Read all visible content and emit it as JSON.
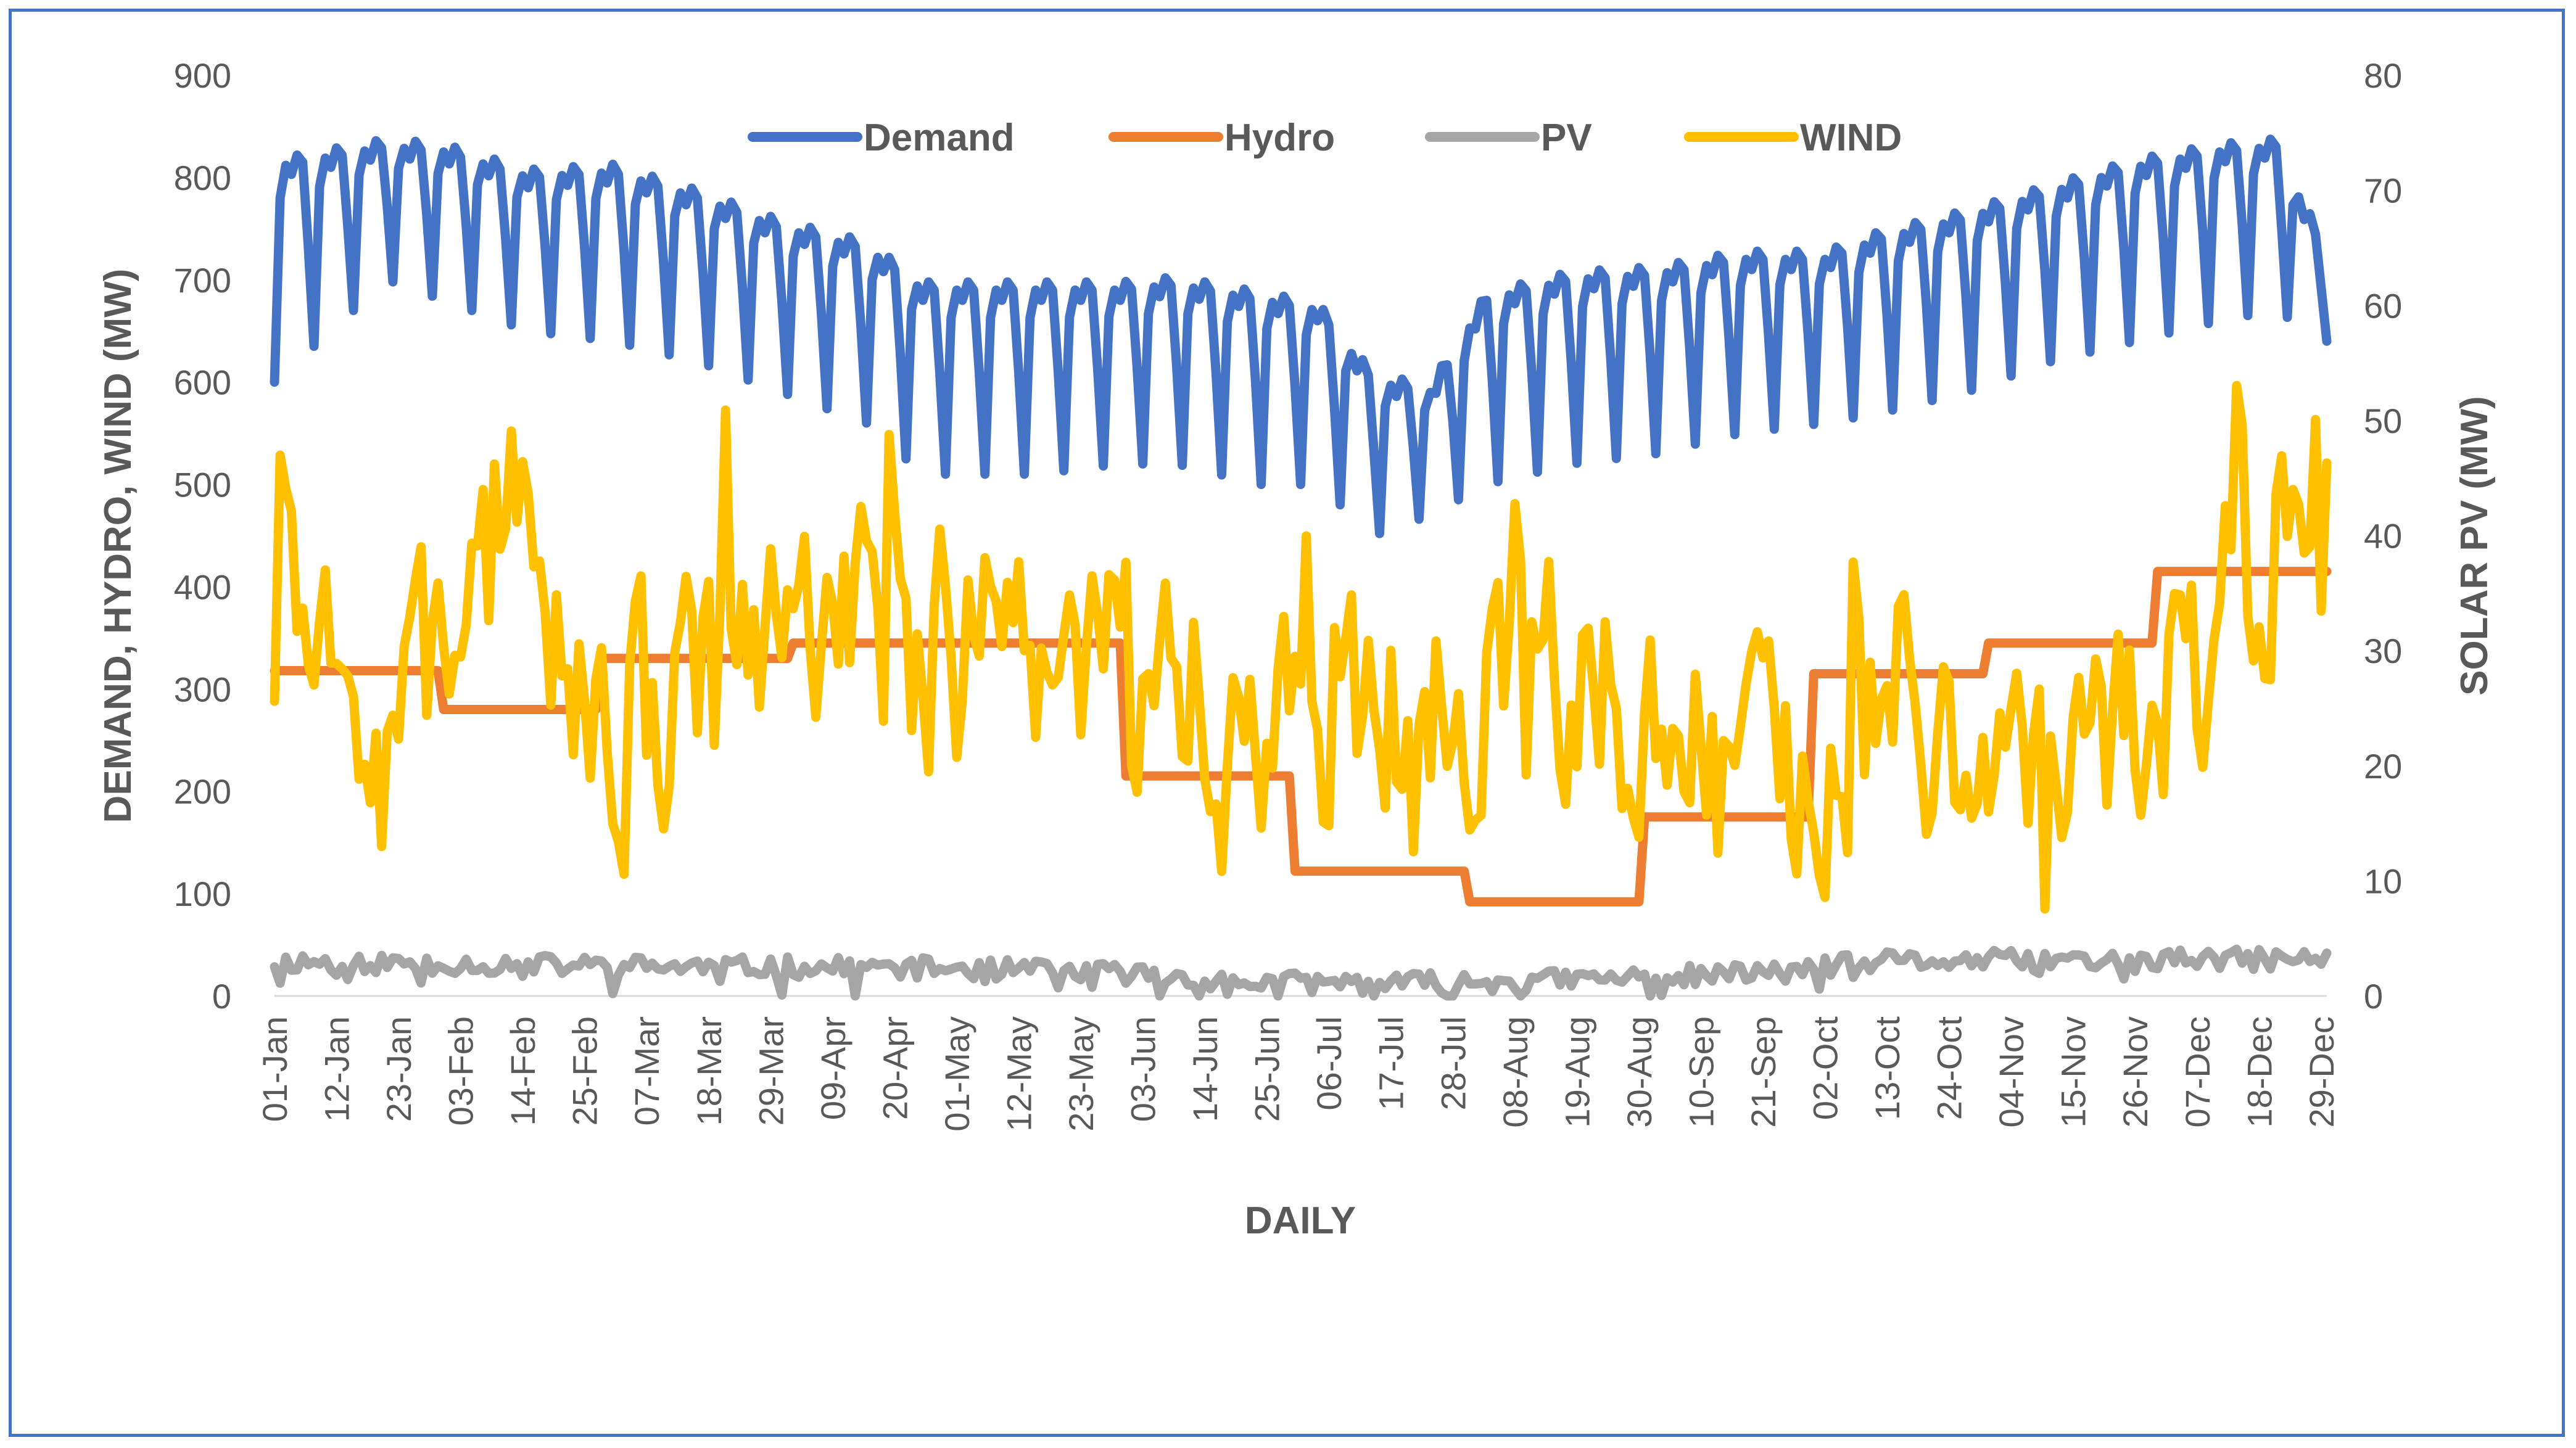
{
  "chart_data": {
    "type": "line",
    "title": "",
    "xlabel": "DAILY",
    "ylabel": "DEMAND, HYDRO, WIND (MW)",
    "y2label": "SOLAR PV (MW)",
    "ylim": [
      0,
      900
    ],
    "y2lim": [
      0,
      80
    ],
    "yticks": [
      "0",
      "100",
      "200",
      "300",
      "400",
      "500",
      "600",
      "700",
      "800",
      "900"
    ],
    "y2ticks": [
      "0",
      "10",
      "20",
      "30",
      "40",
      "50",
      "60",
      "70",
      "80"
    ],
    "day_count": 365,
    "xtick_labels": [
      "01-Jan",
      "12-Jan",
      "23-Jan",
      "03-Feb",
      "14-Feb",
      "25-Feb",
      "07-Mar",
      "18-Mar",
      "29-Mar",
      "09-Apr",
      "20-Apr",
      "01-May",
      "12-May",
      "23-May",
      "03-Jun",
      "14-Jun",
      "25-Jun",
      "06-Jul",
      "17-Jul",
      "28-Jul",
      "08-Aug",
      "19-Aug",
      "30-Aug",
      "10-Sep",
      "21-Sep",
      "02-Oct",
      "13-Oct",
      "24-Oct",
      "04-Nov",
      "15-Nov",
      "26-Nov",
      "07-Dec",
      "18-Dec",
      "29-Dec"
    ],
    "legend_position": "top",
    "series": [
      {
        "name": "Demand",
        "axis": "left",
        "color": "#4472C4",
        "generator": "weekly",
        "weekday_keys": [
          [
            0,
            810
          ],
          [
            20,
            830
          ],
          [
            30,
            825
          ],
          [
            45,
            800
          ],
          [
            60,
            805
          ],
          [
            75,
            780
          ],
          [
            90,
            750
          ],
          [
            105,
            730
          ],
          [
            115,
            690
          ],
          [
            135,
            690
          ],
          [
            150,
            690
          ],
          [
            160,
            695
          ],
          [
            175,
            680
          ],
          [
            185,
            670
          ],
          [
            195,
            600
          ],
          [
            205,
            590
          ],
          [
            215,
            680
          ],
          [
            230,
            700
          ],
          [
            245,
            705
          ],
          [
            260,
            720
          ],
          [
            275,
            720
          ],
          [
            285,
            740
          ],
          [
            300,
            760
          ],
          [
            315,
            785
          ],
          [
            330,
            810
          ],
          [
            345,
            825
          ],
          [
            355,
            830
          ],
          [
            364,
            720
          ]
        ],
        "weekend_keys": [
          [
            0,
            600
          ],
          [
            20,
            700
          ],
          [
            30,
            680
          ],
          [
            45,
            650
          ],
          [
            60,
            640
          ],
          [
            75,
            620
          ],
          [
            90,
            590
          ],
          [
            105,
            560
          ],
          [
            115,
            510
          ],
          [
            135,
            510
          ],
          [
            150,
            520
          ],
          [
            160,
            520
          ],
          [
            175,
            500
          ],
          [
            185,
            500
          ],
          [
            195,
            450
          ],
          [
            205,
            470
          ],
          [
            215,
            500
          ],
          [
            230,
            520
          ],
          [
            245,
            530
          ],
          [
            260,
            550
          ],
          [
            275,
            560
          ],
          [
            285,
            570
          ],
          [
            300,
            590
          ],
          [
            315,
            620
          ],
          [
            330,
            640
          ],
          [
            345,
            660
          ],
          [
            355,
            670
          ],
          [
            364,
            640
          ]
        ]
      },
      {
        "name": "Hydro",
        "axis": "left",
        "color": "#ED7D31",
        "generator": "steps",
        "steps": [
          [
            0,
            318
          ],
          [
            30,
            280
          ],
          [
            58,
            330
          ],
          [
            92,
            345
          ],
          [
            151,
            215
          ],
          [
            181,
            122
          ],
          [
            212,
            92
          ],
          [
            243,
            175
          ],
          [
            273,
            315
          ],
          [
            304,
            345
          ],
          [
            334,
            415
          ],
          [
            364,
            415
          ]
        ]
      },
      {
        "name": "PV",
        "axis": "right",
        "color": "#A5A5A5",
        "generator": "noise",
        "base_keys": [
          [
            0,
            3
          ],
          [
            60,
            2.6
          ],
          [
            120,
            2.4
          ],
          [
            150,
            2.0
          ],
          [
            170,
            1.2
          ],
          [
            200,
            1.1
          ],
          [
            230,
            1.4
          ],
          [
            265,
            2.0
          ],
          [
            285,
            3.0
          ],
          [
            320,
            3.1
          ],
          [
            364,
            3.2
          ]
        ],
        "amplitude": 0.9,
        "seed": 11
      },
      {
        "name": "WIND",
        "axis": "left",
        "color": "#FFC000",
        "generator": "wind",
        "base_keys": [
          [
            0,
            320
          ],
          [
            20,
            260
          ],
          [
            35,
            400
          ],
          [
            45,
            520
          ],
          [
            55,
            270
          ],
          [
            75,
            300
          ],
          [
            95,
            390
          ],
          [
            115,
            330
          ],
          [
            140,
            320
          ],
          [
            165,
            280
          ],
          [
            185,
            240
          ],
          [
            205,
            270
          ],
          [
            230,
            320
          ],
          [
            250,
            220
          ],
          [
            270,
            240
          ],
          [
            290,
            240
          ],
          [
            320,
            230
          ],
          [
            340,
            330
          ],
          [
            364,
            520
          ]
        ],
        "amplitude": 130,
        "seed": 7
      }
    ]
  }
}
